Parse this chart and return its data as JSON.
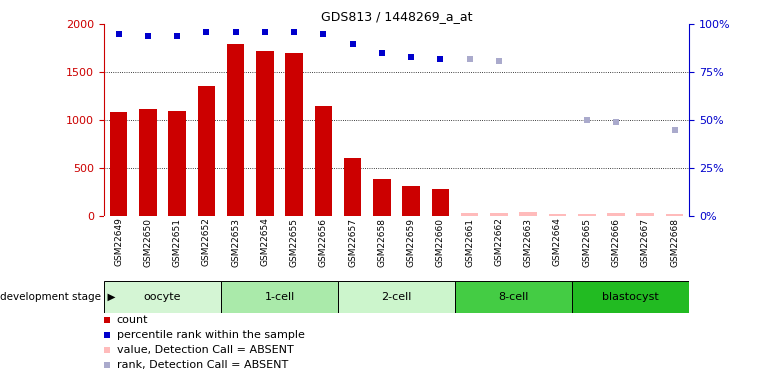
{
  "title": "GDS813 / 1448269_a_at",
  "samples": [
    "GSM22649",
    "GSM22650",
    "GSM22651",
    "GSM22652",
    "GSM22653",
    "GSM22654",
    "GSM22655",
    "GSM22656",
    "GSM22657",
    "GSM22658",
    "GSM22659",
    "GSM22660",
    "GSM22661",
    "GSM22662",
    "GSM22663",
    "GSM22664",
    "GSM22665",
    "GSM22666",
    "GSM22667",
    "GSM22668"
  ],
  "bar_values": [
    1080,
    1120,
    1090,
    1360,
    1800,
    1720,
    1700,
    1150,
    600,
    380,
    310,
    280,
    30,
    30,
    40,
    20,
    20,
    30,
    30,
    20
  ],
  "bar_absent": [
    false,
    false,
    false,
    false,
    false,
    false,
    false,
    false,
    false,
    false,
    false,
    false,
    true,
    true,
    true,
    true,
    true,
    true,
    true,
    true
  ],
  "rank_values": [
    95,
    94,
    94,
    96,
    96,
    96,
    96,
    95,
    90,
    85,
    83,
    82,
    82,
    81,
    null,
    null,
    50,
    49,
    null,
    45
  ],
  "rank_absent": [
    false,
    false,
    false,
    false,
    false,
    false,
    false,
    false,
    false,
    false,
    false,
    false,
    true,
    true,
    true,
    true,
    true,
    true,
    true,
    true
  ],
  "stages": [
    {
      "name": "oocyte",
      "start": 0,
      "end": 3,
      "color": "#d4f5d4"
    },
    {
      "name": "1-cell",
      "start": 4,
      "end": 7,
      "color": "#aaeaaa"
    },
    {
      "name": "2-cell",
      "start": 8,
      "end": 11,
      "color": "#ccf5cc"
    },
    {
      "name": "8-cell",
      "start": 12,
      "end": 15,
      "color": "#44cc44"
    },
    {
      "name": "blastocyst",
      "start": 16,
      "end": 19,
      "color": "#22bb22"
    }
  ],
  "bar_color_present": "#cc0000",
  "bar_color_absent": "#ffbbbb",
  "rank_color_present": "#0000cc",
  "rank_color_absent": "#aaaacc",
  "ylim_left": [
    0,
    2000
  ],
  "ylim_right": [
    0,
    100
  ],
  "yticks_left": [
    0,
    500,
    1000,
    1500,
    2000
  ],
  "yticks_right": [
    0,
    25,
    50,
    75,
    100
  ],
  "ytick_labels_right": [
    "0%",
    "25%",
    "50%",
    "75%",
    "100%"
  ],
  "grid_values": [
    500,
    1000,
    1500
  ],
  "bar_width": 0.6,
  "sample_gray": "#d0d0d0",
  "legend_items": [
    {
      "color": "#cc0000",
      "label": "count"
    },
    {
      "color": "#0000cc",
      "label": "percentile rank within the sample"
    },
    {
      "color": "#ffbbbb",
      "label": "value, Detection Call = ABSENT"
    },
    {
      "color": "#aaaacc",
      "label": "rank, Detection Call = ABSENT"
    }
  ]
}
